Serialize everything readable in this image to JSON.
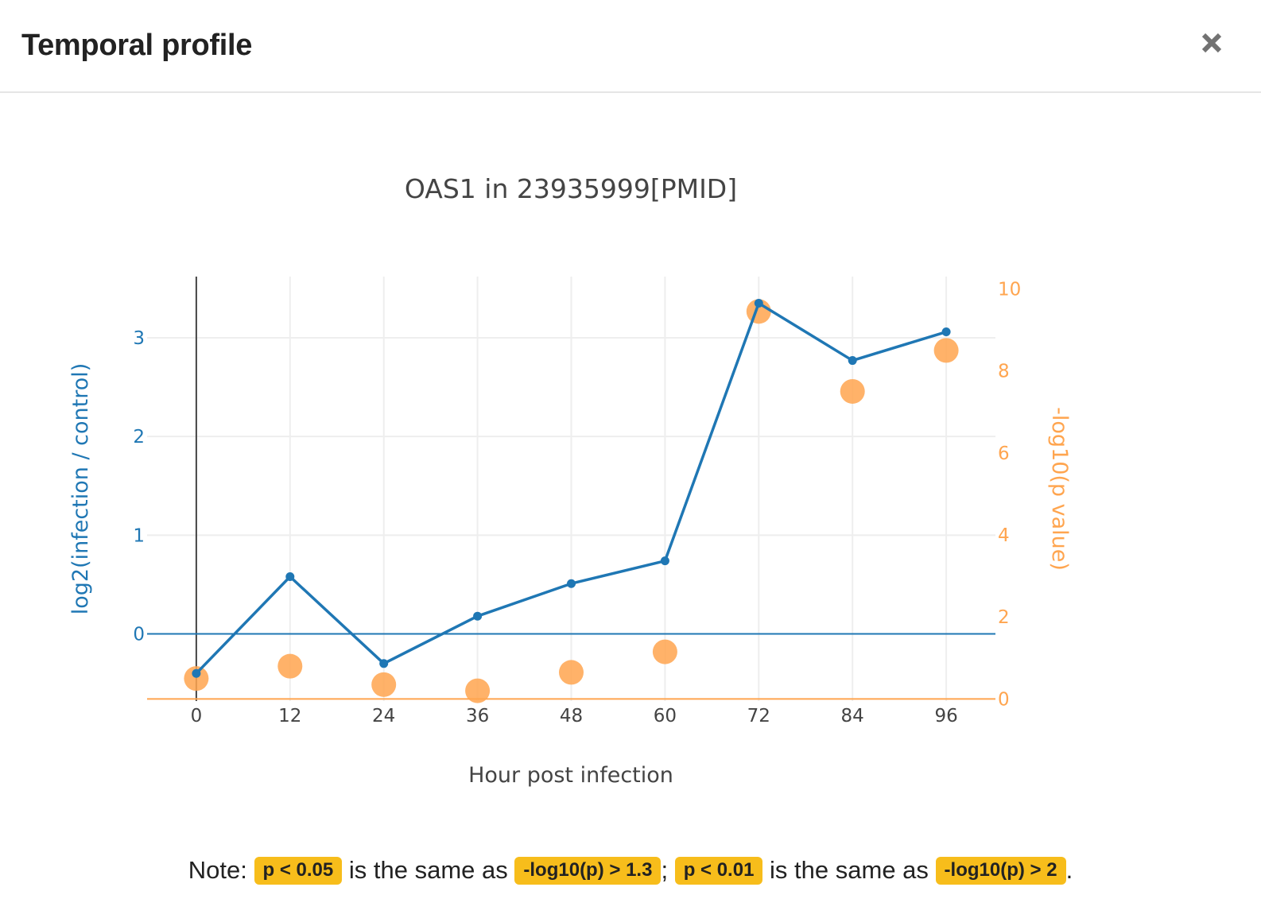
{
  "modal": {
    "title": "Temporal profile",
    "close_symbol": "×"
  },
  "chart_data": {
    "type": "line",
    "title": "OAS1 in 23935999[PMID]",
    "xlabel": "Hour post infection",
    "ylabel_left": "log2(infection / control)",
    "ylabel_right": "-log10(p value)",
    "x": [
      0,
      12,
      24,
      36,
      48,
      60,
      72,
      84,
      96
    ],
    "x_ticks": [
      0,
      12,
      24,
      36,
      48,
      60,
      72,
      84,
      96
    ],
    "y_left_ticks": [
      0,
      1,
      2,
      3
    ],
    "y_right_ticks": [
      0,
      2,
      4,
      6,
      8,
      10
    ],
    "series": [
      {
        "kind": "line",
        "axis": "left",
        "color": "#1f77b4",
        "values": [
          -0.4,
          0.58,
          -0.3,
          0.18,
          0.51,
          0.74,
          3.35,
          2.77,
          3.06
        ]
      },
      {
        "kind": "scatter",
        "axis": "right",
        "color": "#ffa54f",
        "values": [
          0.5,
          0.8,
          0.35,
          0.2,
          0.65,
          1.15,
          9.45,
          7.5,
          8.5
        ]
      }
    ],
    "xlim": [
      -6.3,
      102.3
    ],
    "ylim_left": [
      -0.68,
      3.62
    ],
    "ylim_right": [
      -0.05,
      10.3
    ],
    "grid": true
  },
  "note": {
    "prefix": "Note:",
    "badge1": "p < 0.05",
    "mid1": "is the same as",
    "badge2": "-log10(p) > 1.3",
    "sep": ";",
    "badge3": "p < 0.01",
    "mid2": "is the same as",
    "badge4": "-log10(p) > 2",
    "suffix": "."
  },
  "colors": {
    "left_axis": "#1f77b4",
    "right_axis": "#ffa54f",
    "badge": "#f7bd1b"
  }
}
